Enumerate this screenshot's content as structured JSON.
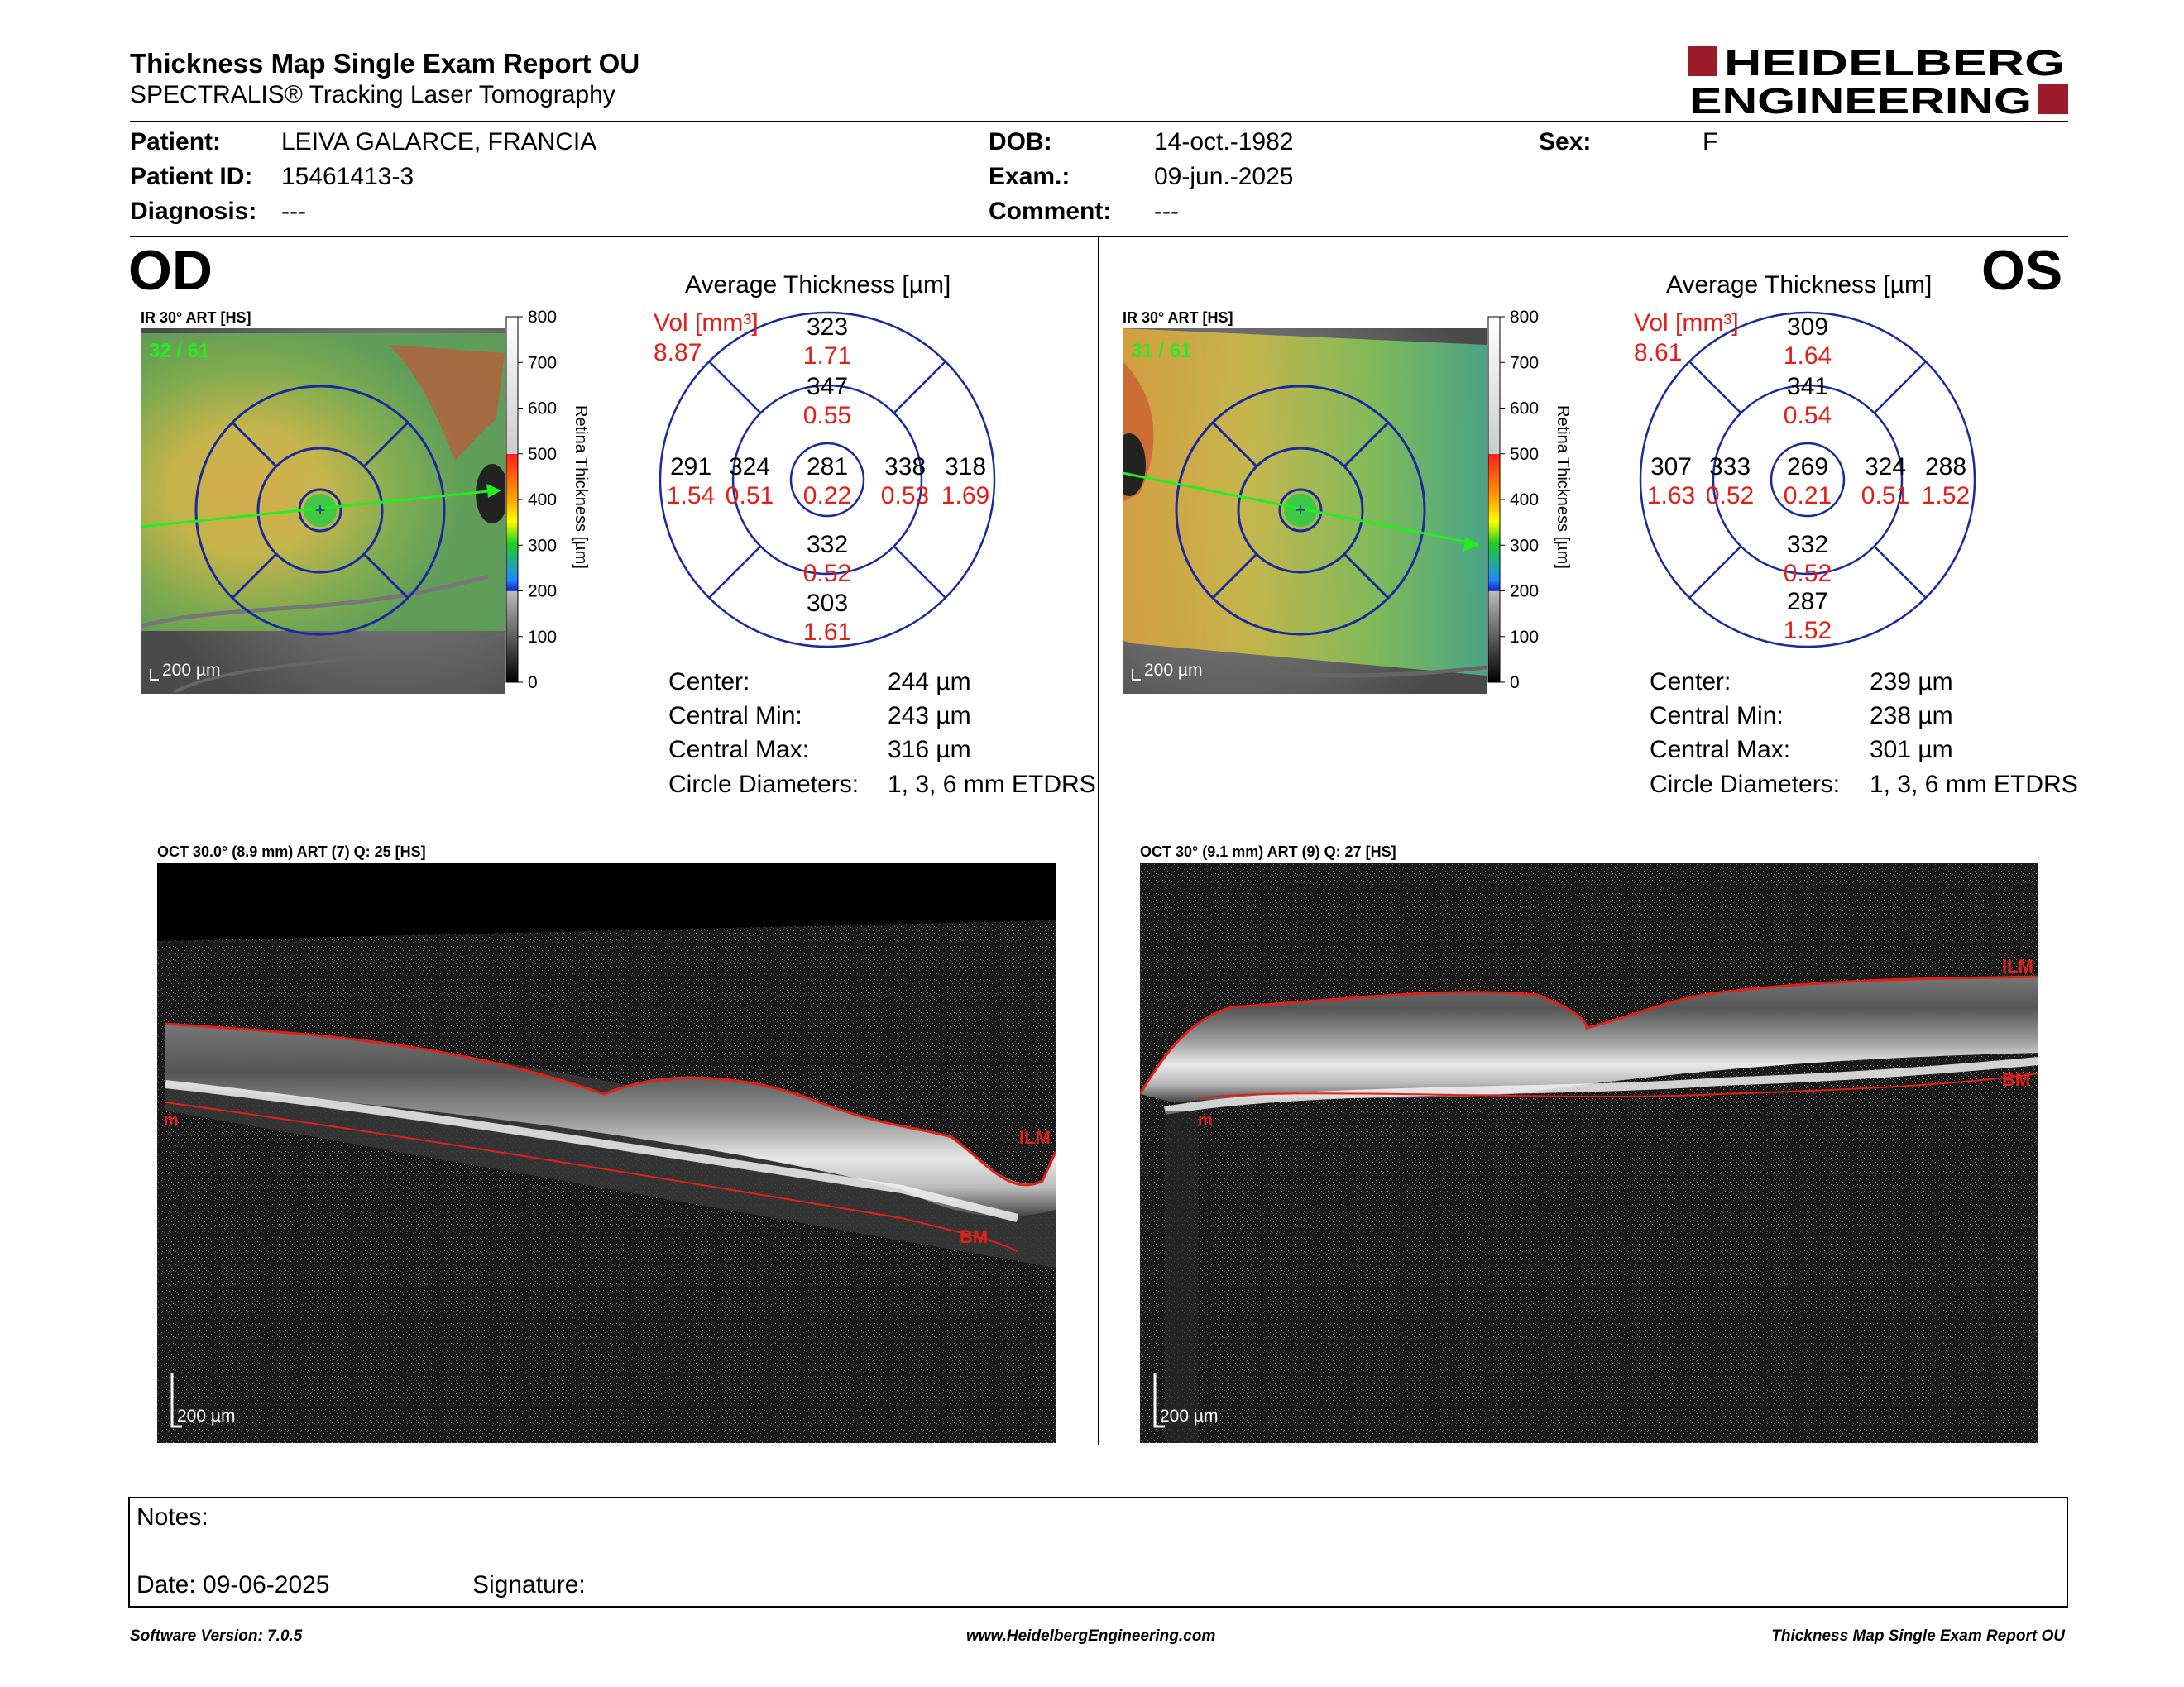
{
  "header": {
    "title": "Thickness Map Single Exam Report OU",
    "subtitle": "SPECTRALIS® Tracking Laser Tomography",
    "logo_line1": "HEIDELBERG",
    "logo_line2": "ENGINEERING"
  },
  "patient": {
    "patient_label": "Patient:",
    "patient_value": "LEIVA GALARCE, FRANCIA",
    "id_label": "Patient ID:",
    "id_value": "15461413-3",
    "diagnosis_label": "Diagnosis:",
    "diagnosis_value": "---",
    "dob_label": "DOB:",
    "dob_value": "14-oct.-1982",
    "exam_label": "Exam.:",
    "exam_value": "09-jun.-2025",
    "comment_label": "Comment:",
    "comment_value": "---",
    "sex_label": "Sex:",
    "sex_value": "F"
  },
  "colors": {
    "accent_red": "#9b1b2a",
    "annotation_red": "#e0201b",
    "grid_blue": "#1a2a9c",
    "fixation_green": "#22dd22"
  },
  "od": {
    "eye": "OD",
    "ir_label": "IR 30° ART [HS]",
    "ir_frames": "32 / 61",
    "ir_scale": "200 µm",
    "colorbar_ticks": [
      "800",
      "700",
      "600",
      "500",
      "400",
      "300",
      "200",
      "100",
      "0"
    ],
    "colorbar_title": "Retina Thickness [µm]",
    "avg_title": "Average Thickness [µm]",
    "vol_label": "Vol [mm³]",
    "vol_value": "8.87",
    "grid": {
      "outer_sup": "323",
      "outer_sup_v": "1.71",
      "inner_sup": "347",
      "inner_sup_v": "0.55",
      "outer_temp": "291",
      "outer_temp_v": "1.54",
      "inner_temp": "324",
      "inner_temp_v": "0.51",
      "center": "281",
      "center_v": "0.22",
      "inner_nas": "338",
      "inner_nas_v": "0.53",
      "outer_nas": "318",
      "outer_nas_v": "1.69",
      "inner_inf": "332",
      "inner_inf_v": "0.52",
      "outer_inf": "303",
      "outer_inf_v": "1.61"
    },
    "stats": {
      "center_label": "Center:",
      "center_value": "244 µm",
      "min_label": "Central Min:",
      "min_value": "243 µm",
      "max_label": "Central Max:",
      "max_value": "316 µm",
      "diam_label": "Circle Diameters:",
      "diam_value": "1, 3, 6 mm ETDRS"
    },
    "oct_label": "OCT 30.0° (8.9 mm) ART (7) Q: 25 [HS]",
    "oct_scale": "200 µm",
    "oct_ilm": "ILM",
    "oct_bm": "BM",
    "oct_m": "m"
  },
  "os": {
    "eye": "OS",
    "ir_label": "IR 30° ART [HS]",
    "ir_frames": "31 / 61",
    "ir_scale": "200 µm",
    "colorbar_ticks": [
      "800",
      "700",
      "600",
      "500",
      "400",
      "300",
      "200",
      "100",
      "0"
    ],
    "colorbar_title": "Retina Thickness [µm]",
    "avg_title": "Average Thickness [µm]",
    "vol_label": "Vol [mm³]",
    "vol_value": "8.61",
    "grid": {
      "outer_sup": "309",
      "outer_sup_v": "1.64",
      "inner_sup": "341",
      "inner_sup_v": "0.54",
      "outer_temp": "307",
      "outer_temp_v": "1.63",
      "inner_temp": "333",
      "inner_temp_v": "0.52",
      "center": "269",
      "center_v": "0.21",
      "inner_nas": "324",
      "inner_nas_v": "0.51",
      "outer_nas": "288",
      "outer_nas_v": "1.52",
      "inner_inf": "332",
      "inner_inf_v": "0.52",
      "outer_inf": "287",
      "outer_inf_v": "1.52"
    },
    "stats": {
      "center_label": "Center:",
      "center_value": "239 µm",
      "min_label": "Central Min:",
      "min_value": "238 µm",
      "max_label": "Central Max:",
      "max_value": "301 µm",
      "diam_label": "Circle Diameters:",
      "diam_value": "1, 3, 6 mm ETDRS"
    },
    "oct_label": "OCT 30° (9.1 mm) ART (9) Q: 27 [HS]",
    "oct_scale": "200 µm",
    "oct_ilm": "ILM",
    "oct_bm": "BM",
    "oct_m": "m"
  },
  "notes": {
    "notes_label": "Notes:",
    "date_label": "Date: 09-06-2025",
    "signature_label": "Signature:"
  },
  "footer": {
    "software": "Software Version: 7.0.5",
    "website": "www.HeidelbergEngineering.com",
    "report": "Thickness Map Single Exam Report OU"
  }
}
